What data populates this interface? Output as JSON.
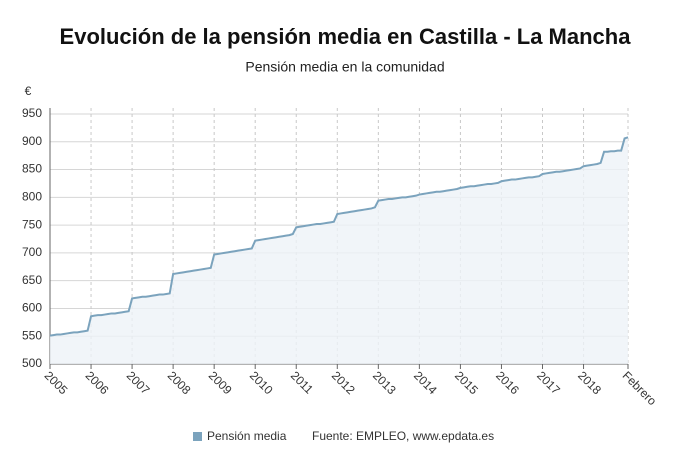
{
  "chart_data": {
    "type": "line",
    "title": "Evolución de la pensión media en Castilla - La Mancha",
    "subtitle": "Pensión media en la comunidad",
    "y_label": "€",
    "source": "Fuente: EMPLEO, www.epdata.es",
    "categories": [
      "2005",
      null,
      null,
      null,
      null,
      null,
      null,
      null,
      null,
      null,
      null,
      null,
      "2006",
      null,
      null,
      null,
      null,
      null,
      null,
      null,
      null,
      null,
      null,
      null,
      "2007",
      null,
      null,
      null,
      null,
      null,
      null,
      null,
      null,
      null,
      null,
      null,
      "2008",
      null,
      null,
      null,
      null,
      null,
      null,
      null,
      null,
      null,
      null,
      null,
      "2009",
      null,
      null,
      null,
      null,
      null,
      null,
      null,
      null,
      null,
      null,
      null,
      "2010",
      null,
      null,
      null,
      null,
      null,
      null,
      null,
      null,
      null,
      null,
      null,
      "2011",
      null,
      null,
      null,
      null,
      null,
      null,
      null,
      null,
      null,
      null,
      null,
      "2012",
      null,
      null,
      null,
      null,
      null,
      null,
      null,
      null,
      null,
      null,
      null,
      "2013",
      null,
      null,
      null,
      null,
      null,
      null,
      null,
      null,
      null,
      null,
      null,
      "2014",
      null,
      null,
      null,
      null,
      null,
      null,
      null,
      null,
      null,
      null,
      null,
      "2015",
      null,
      null,
      null,
      null,
      null,
      null,
      null,
      null,
      null,
      null,
      null,
      "2016",
      null,
      null,
      null,
      null,
      null,
      null,
      null,
      null,
      null,
      null,
      null,
      "2017",
      null,
      null,
      null,
      null,
      null,
      null,
      null,
      null,
      null,
      null,
      null,
      "2018",
      null,
      null,
      null,
      null,
      null,
      null,
      null,
      null,
      null,
      null,
      null,
      null,
      "Febrero"
    ],
    "series": [
      {
        "name": "Pensión media",
        "color": "#7ba3bd",
        "values": [
          551,
          552,
          553,
          553,
          554,
          555,
          556,
          557,
          557,
          558,
          559,
          560,
          586,
          587,
          588,
          588,
          589,
          590,
          591,
          591,
          592,
          593,
          594,
          595,
          618,
          619,
          620,
          621,
          621,
          622,
          623,
          624,
          625,
          625,
          626,
          627,
          662,
          663,
          664,
          665,
          666,
          667,
          668,
          669,
          670,
          671,
          672,
          673,
          697,
          698,
          699,
          700,
          701,
          702,
          703,
          704,
          705,
          706,
          707,
          708,
          722,
          723,
          724,
          725,
          726,
          727,
          728,
          729,
          730,
          731,
          732,
          734,
          746,
          747,
          748,
          749,
          750,
          751,
          752,
          752,
          753,
          754,
          755,
          756,
          770,
          771,
          772,
          773,
          774,
          775,
          776,
          777,
          778,
          779,
          780,
          782,
          794,
          795,
          796,
          797,
          797,
          798,
          799,
          800,
          800,
          801,
          802,
          803,
          805,
          806,
          807,
          808,
          809,
          810,
          810,
          811,
          812,
          813,
          814,
          815,
          817,
          818,
          819,
          820,
          820,
          821,
          822,
          823,
          824,
          824,
          825,
          826,
          829,
          830,
          831,
          832,
          832,
          833,
          834,
          835,
          836,
          836,
          837,
          838,
          842,
          843,
          844,
          845,
          846,
          846,
          847,
          848,
          849,
          850,
          851,
          852,
          856,
          857,
          858,
          859,
          860,
          862,
          882,
          882,
          883,
          883,
          884,
          884,
          906,
          908
        ]
      }
    ],
    "ylim": [
      500,
      950
    ],
    "yticks": [
      500,
      550,
      600,
      650,
      700,
      750,
      800,
      850,
      900,
      950
    ],
    "grid": true
  }
}
